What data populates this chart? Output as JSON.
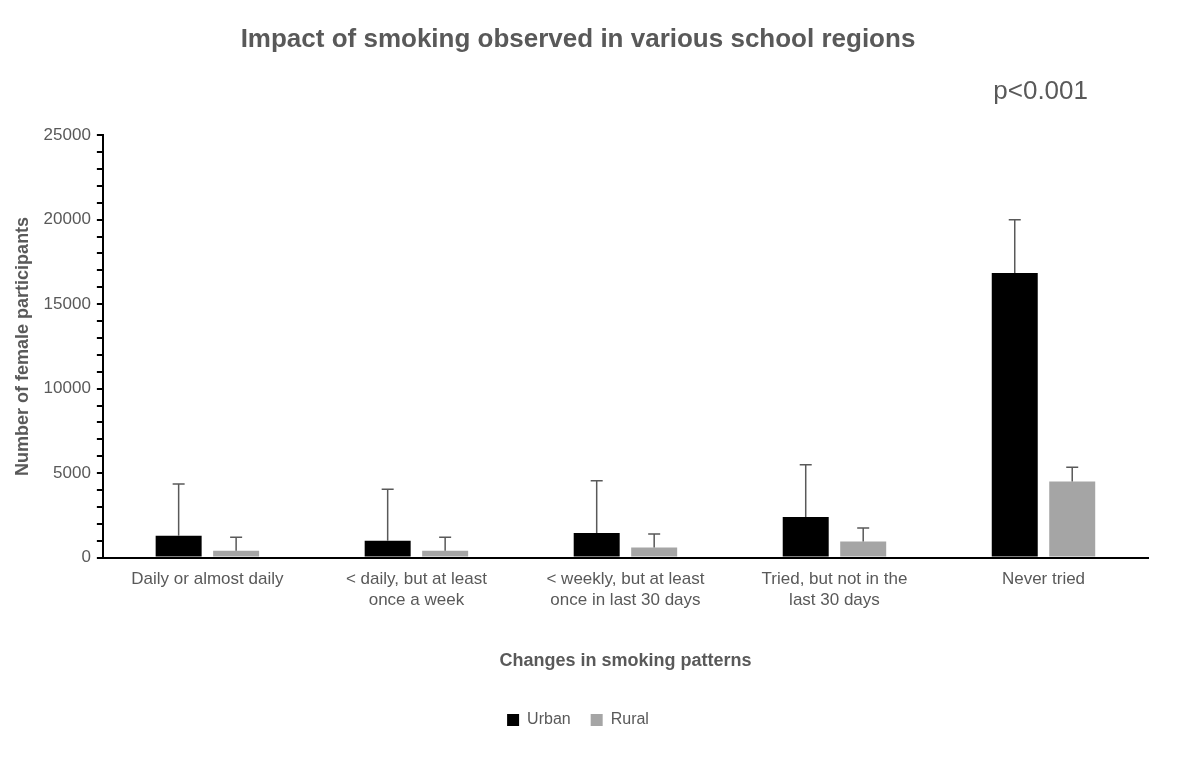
{
  "chart_data": {
    "type": "bar",
    "title": "Impact of smoking observed in various school regions",
    "annotations": [
      "p<0.001"
    ],
    "xlabel": "Changes in smoking patterns",
    "ylabel": "Number of female participants",
    "categories": [
      "Daily or almost daily",
      "< daily, but at least once a week",
      "< weekly, but at least once in last 30 days",
      "Tried, but not in the last 30 days",
      "Never tried"
    ],
    "series": [
      {
        "name": "Urban",
        "color": "#000000",
        "values": [
          1300,
          1000,
          1450,
          2400,
          16850
        ],
        "errors": [
          [
            1300,
            4350
          ],
          [
            1000,
            4050
          ],
          [
            1450,
            4550
          ],
          [
            2400,
            5500
          ],
          [
            16850,
            20000
          ]
        ]
      },
      {
        "name": "Rural",
        "color": "#a5a5a5",
        "values": [
          400,
          400,
          600,
          950,
          4500
        ],
        "errors": [
          [
            400,
            1200
          ],
          [
            400,
            1200
          ],
          [
            600,
            1400
          ],
          [
            950,
            1750
          ],
          [
            4500,
            5350
          ]
        ]
      }
    ],
    "ylim": [
      0,
      25000
    ],
    "yticks": [
      0,
      {
        "value": 1000,
        "label": null
      },
      {
        "value": 2000,
        "label": null
      },
      {
        "value": 3000,
        "label": null
      },
      {
        "value": 4000,
        "label": null
      },
      5000,
      {
        "value": 6000,
        "label": null
      },
      {
        "value": 7000,
        "label": null
      },
      {
        "value": 8000,
        "label": null
      },
      {
        "value": 9000,
        "label": null
      },
      10000,
      {
        "value": 11000,
        "label": null
      },
      {
        "value": 12000,
        "label": null
      },
      {
        "value": 13000,
        "label": null
      },
      {
        "value": 14000,
        "label": null
      },
      15000,
      {
        "value": 16000,
        "label": null
      },
      {
        "value": 17000,
        "label": null
      },
      {
        "value": 18000,
        "label": null
      },
      {
        "value": 19000,
        "label": null
      },
      20000,
      {
        "value": 21000,
        "label": null
      },
      {
        "value": 22000,
        "label": null
      },
      {
        "value": 23000,
        "label": null
      },
      {
        "value": 24000,
        "label": null
      },
      25000
    ],
    "grid": false,
    "legend": "bottom"
  }
}
